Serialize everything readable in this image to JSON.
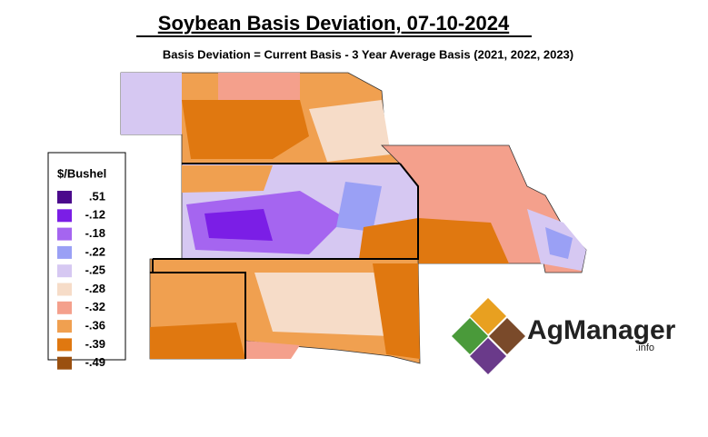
{
  "title": "Soybean Basis Deviation, 07-10-2024",
  "subtitle": "Basis Deviation = Current Basis - 3 Year Average Basis (2021, 2022, 2023)",
  "legend": {
    "title": "$/Bushel",
    "items": [
      {
        "label": ".51",
        "color": "#4b0a8c"
      },
      {
        "label": "-.12",
        "color": "#7b1ee6"
      },
      {
        "label": "-.18",
        "color": "#a565f0"
      },
      {
        "label": "-.22",
        "color": "#9aa0f5"
      },
      {
        "label": "-.25",
        "color": "#d6c8f2"
      },
      {
        "label": "-.28",
        "color": "#f6dcc8"
      },
      {
        "label": "-.32",
        "color": "#f4a08c"
      },
      {
        "label": "-.36",
        "color": "#f0a050"
      },
      {
        "label": "-.39",
        "color": "#e07810"
      },
      {
        "label": "-.49",
        "color": "#9a5010"
      }
    ]
  },
  "logo": {
    "name": "AgManager",
    "suffix": ".info"
  }
}
